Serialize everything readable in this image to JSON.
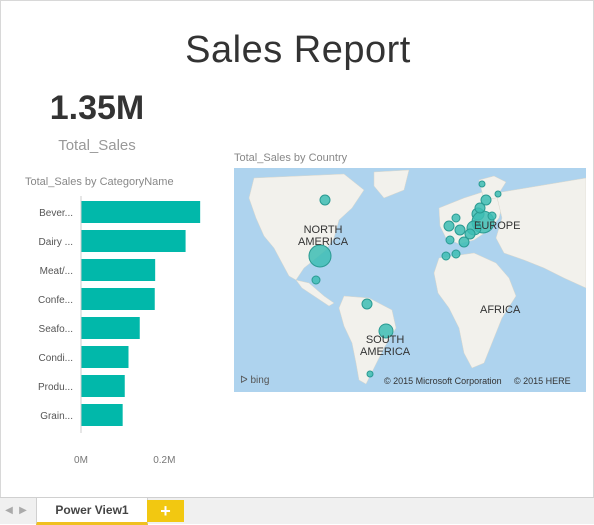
{
  "report": {
    "title": "Sales Report"
  },
  "card": {
    "value": "1.35M",
    "label": "Total_Sales"
  },
  "bar_visual": {
    "title": "Total_Sales by CategoryName"
  },
  "map_visual": {
    "title": "Total_Sales by Country",
    "labels": {
      "north_america": "NORTH\nAMERICA",
      "south_america": "SOUTH\nAMERICA",
      "europe": "EUROPE",
      "africa": "AFRICA"
    },
    "bing": "bing",
    "copyright_ms": "© 2015 Microsoft Corporation",
    "copyright_here": "© 2015 HERE",
    "bubble_color": "#3dbdb4"
  },
  "tabs": {
    "page_tab": "Power View1",
    "add_tab": "+"
  },
  "chart_data": {
    "type": "bar",
    "orientation": "horizontal",
    "title": "Total_Sales by CategoryName",
    "categories": [
      "Bever...",
      "Dairy ...",
      "Meat/...",
      "Confe...",
      "Seafo...",
      "Condi...",
      "Produ...",
      "Grain..."
    ],
    "values": [
      0.286,
      0.251,
      0.178,
      0.177,
      0.141,
      0.114,
      0.105,
      0.1
    ],
    "xlim": [
      0,
      0.3
    ],
    "x_ticks": [
      0,
      0.2
    ],
    "x_tick_labels": [
      "0M",
      "0.2M"
    ],
    "color": "#01b8aa",
    "grid": false
  }
}
